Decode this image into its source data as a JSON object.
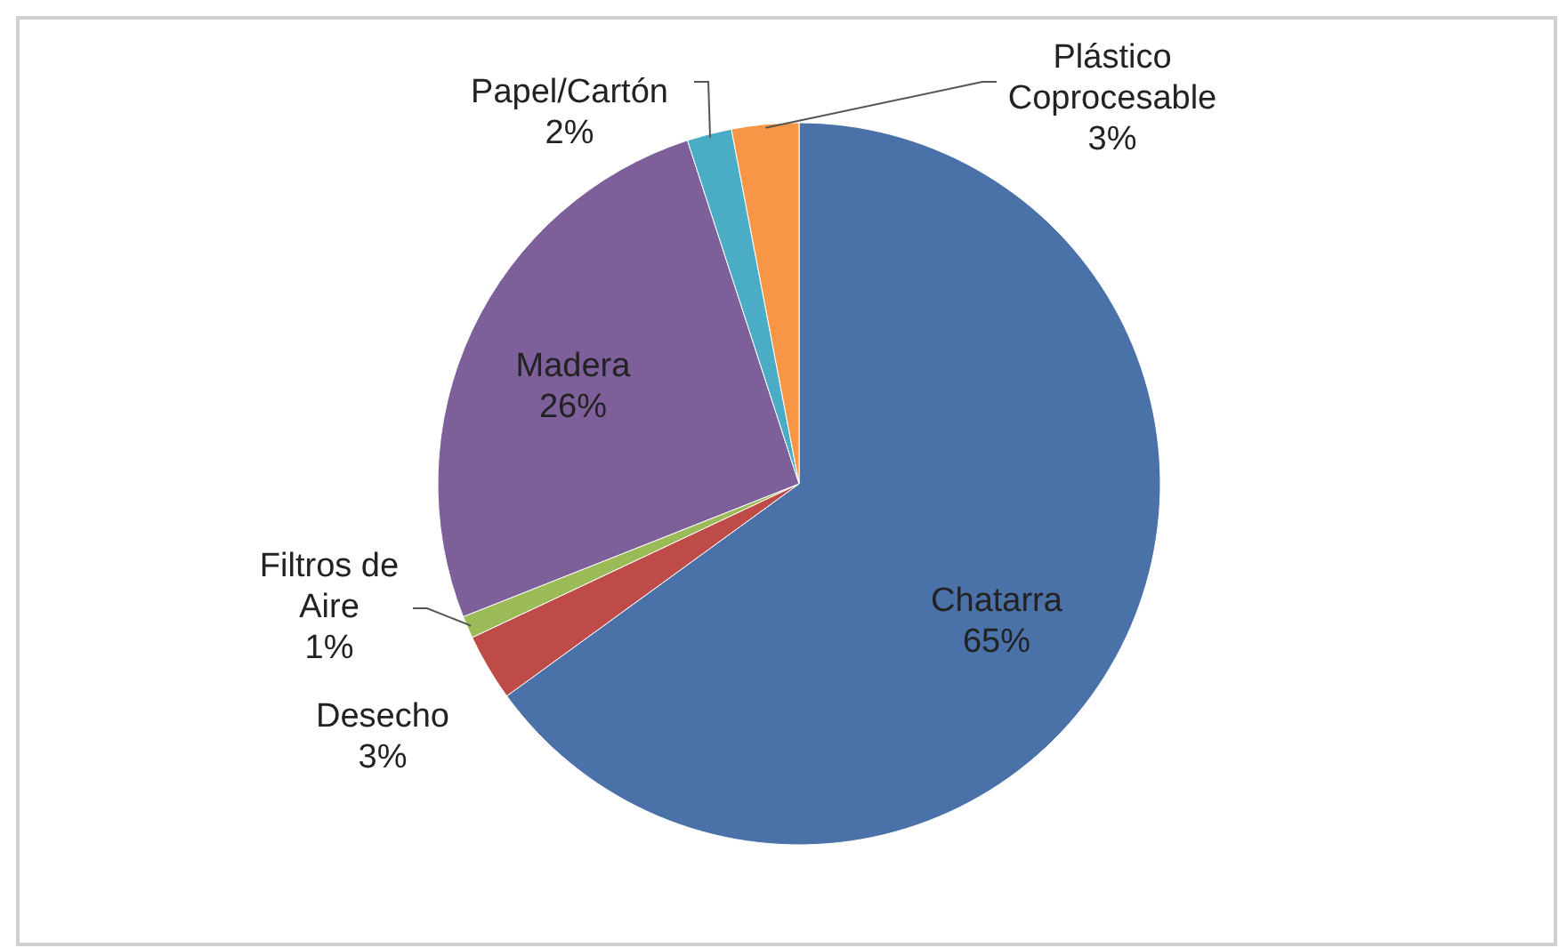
{
  "chart_data": {
    "type": "pie",
    "categories": [
      "Chatarra",
      "Desecho",
      "Filtros de Aire",
      "Madera",
      "Papel/Cartón",
      "Plástico Coprocesable"
    ],
    "values": [
      65,
      3,
      1,
      26,
      2,
      3
    ],
    "value_labels": [
      "65%",
      "3%",
      "1%",
      "26%",
      "2%",
      "3%"
    ],
    "colors": [
      "#4a72a8",
      "#be4b48",
      "#9bbb59",
      "#7d5f9a",
      "#4bacc6",
      "#f79646"
    ]
  }
}
